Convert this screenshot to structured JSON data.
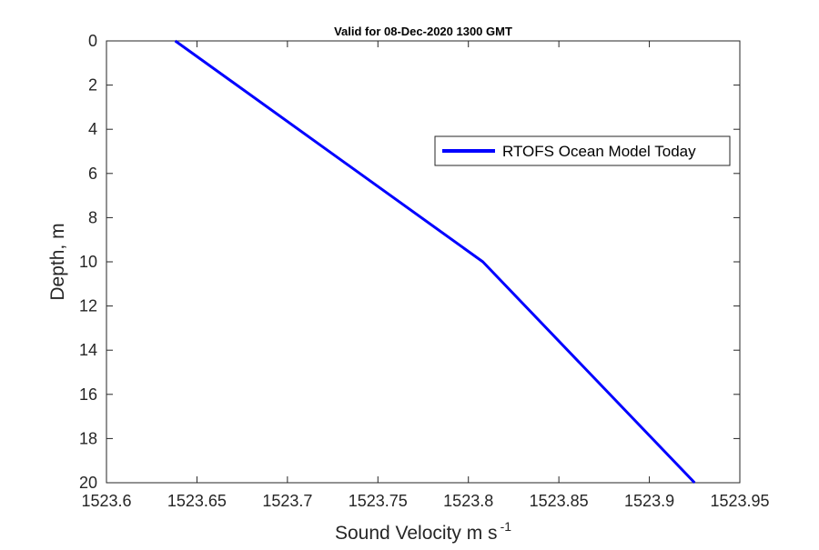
{
  "chart_data": {
    "type": "line",
    "title": "Valid for 08-Dec-2020 1300 GMT",
    "xlabel": "Sound Velocity m s",
    "xlabel_superscript": "-1",
    "ylabel": "Depth, m",
    "xlim": [
      1523.6,
      1523.95
    ],
    "ylim": [
      0,
      20
    ],
    "y_reversed": true,
    "x_ticks": [
      "1523.6",
      "1523.65",
      "1523.7",
      "1523.75",
      "1523.8",
      "1523.85",
      "1523.9",
      "1523.95"
    ],
    "y_ticks": [
      "0",
      "2",
      "4",
      "6",
      "8",
      "10",
      "12",
      "14",
      "16",
      "18",
      "20"
    ],
    "grid": false,
    "legend_position": "upper-right",
    "series": [
      {
        "name": "RTOFS Ocean Model Today",
        "color": "#0000ff",
        "x": [
          1523.638,
          1523.808,
          1523.925
        ],
        "y": [
          0,
          10,
          20
        ]
      }
    ]
  }
}
